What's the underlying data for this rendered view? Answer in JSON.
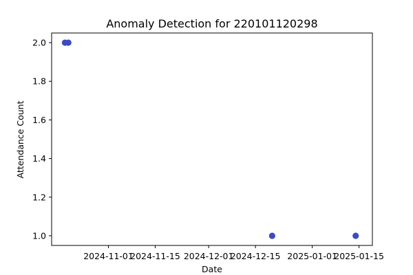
{
  "chart_data": {
    "type": "scatter",
    "title": "Anomaly Detection for 220101120298",
    "xlabel": "Date",
    "ylabel": "Attendance Count",
    "x_type": "date",
    "xlim": [
      "2024-10-15",
      "2025-01-19"
    ],
    "ylim": [
      0.95,
      2.05
    ],
    "x_ticks": [
      "2024-11-01",
      "2024-11-15",
      "2024-12-01",
      "2024-12-15",
      "2025-01-01",
      "2025-01-15"
    ],
    "y_ticks": [
      1.0,
      1.2,
      1.4,
      1.6,
      1.8,
      2.0
    ],
    "y_tick_labels": [
      "1.0",
      "1.2",
      "1.4",
      "1.6",
      "1.8",
      "2.0"
    ],
    "grid": false,
    "series": [
      {
        "color": "#3b4cc0",
        "points": [
          {
            "x": "2024-10-19",
            "y": 2
          },
          {
            "x": "2024-10-20",
            "y": 2
          },
          {
            "x": "2024-12-20",
            "y": 1
          },
          {
            "x": "2025-01-14",
            "y": 1
          }
        ]
      }
    ]
  }
}
